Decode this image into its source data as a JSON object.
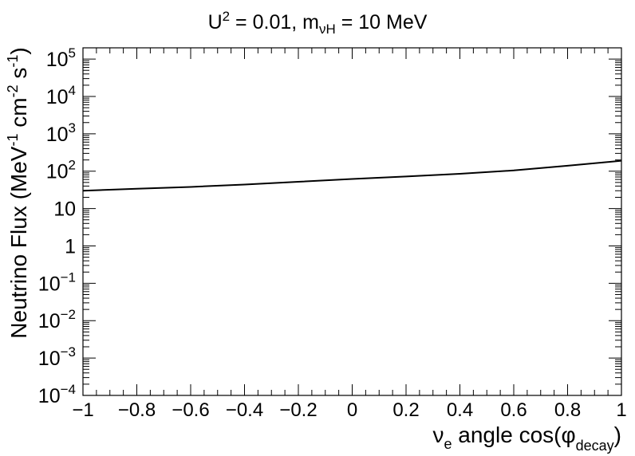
{
  "chart_data": {
    "type": "line",
    "title": {
      "prefix": "U",
      "sup": "2",
      "middle": " = 0.01, m",
      "sub": "νH",
      "suffix": " = 10 MeV"
    },
    "xlabel": {
      "nu": "ν",
      "nu_sub": "e",
      "main": " angle cos(φ",
      "sub": "decay",
      "close": ")"
    },
    "ylabel": {
      "p1": "Neutrino Flux (MeV",
      "s1": "-1",
      "p2": " cm",
      "s2": "-2",
      "p3": " s",
      "s3": "-1",
      "p4": ")"
    },
    "xlim": [
      -1,
      1
    ],
    "ylim": [
      0.0001,
      200000
    ],
    "yscale": "log",
    "x_ticks": [
      {
        "value": -1,
        "label": "−1"
      },
      {
        "value": -0.8,
        "label": "−0.8"
      },
      {
        "value": -0.6,
        "label": "−0.6"
      },
      {
        "value": -0.4,
        "label": "−0.4"
      },
      {
        "value": -0.2,
        "label": "−0.2"
      },
      {
        "value": 0,
        "label": "0"
      },
      {
        "value": 0.2,
        "label": "0.2"
      },
      {
        "value": 0.4,
        "label": "0.4"
      },
      {
        "value": 0.6,
        "label": "0.6"
      },
      {
        "value": 0.8,
        "label": "0.8"
      },
      {
        "value": 1,
        "label": "1"
      }
    ],
    "y_ticks": [
      {
        "value": 0.0001,
        "base": "10",
        "exp": "−4"
      },
      {
        "value": 0.001,
        "base": "10",
        "exp": "−3"
      },
      {
        "value": 0.01,
        "base": "10",
        "exp": "−2"
      },
      {
        "value": 0.1,
        "base": "10",
        "exp": "−1"
      },
      {
        "value": 1,
        "base": "1",
        "exp": ""
      },
      {
        "value": 10,
        "base": "10",
        "exp": ""
      },
      {
        "value": 100,
        "base": "10",
        "exp": "2"
      },
      {
        "value": 1000,
        "base": "10",
        "exp": "3"
      },
      {
        "value": 10000,
        "base": "10",
        "exp": "4"
      },
      {
        "value": 100000,
        "base": "10",
        "exp": "5"
      }
    ],
    "series": [
      {
        "color": "#000000",
        "x": [
          -1,
          -0.8,
          -0.6,
          -0.4,
          -0.2,
          0,
          0.2,
          0.4,
          0.6,
          0.8,
          1
        ],
        "y": [
          30,
          34,
          38,
          44,
          52,
          62,
          72,
          85,
          105,
          140,
          190
        ]
      }
    ]
  }
}
